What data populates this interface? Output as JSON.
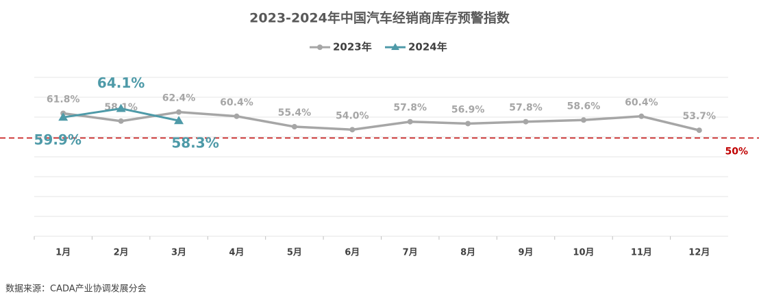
{
  "chart_data": {
    "type": "line",
    "title": "2023-2024年中国汽车经销商库存预警指数",
    "categories": [
      "1月",
      "2月",
      "3月",
      "4月",
      "5月",
      "6月",
      "7月",
      "8月",
      "9月",
      "10月",
      "11月",
      "12月"
    ],
    "series": [
      {
        "name": "2023年",
        "color": "#a6a6a6",
        "marker": "circle",
        "values": [
          61.8,
          58.1,
          62.4,
          60.4,
          55.4,
          54.0,
          57.8,
          56.9,
          57.8,
          58.6,
          60.4,
          53.7
        ],
        "value_labels": [
          "61.8%",
          "58.1%",
          "62.4%",
          "60.4%",
          "55.4%",
          "54.0%",
          "57.8%",
          "56.9%",
          "57.8%",
          "58.6%",
          "60.4%",
          "53.7%"
        ]
      },
      {
        "name": "2024年",
        "color": "#4e9aa8",
        "marker": "triangle",
        "values": [
          59.9,
          64.1,
          58.3,
          null,
          null,
          null,
          null,
          null,
          null,
          null,
          null,
          null
        ],
        "value_labels": [
          "59.9%",
          "64.1%",
          "58.3%",
          null,
          null,
          null,
          null,
          null,
          null,
          null,
          null,
          null
        ]
      }
    ],
    "ylim": [
      3,
      79
    ],
    "yticks": [
      3,
      12.5,
      22,
      31.5,
      41,
      50.5,
      60,
      69.5,
      79
    ],
    "ytick_labels": false,
    "grid": true,
    "legend": "top",
    "reference_line": {
      "value": 50,
      "label": "50%",
      "color": "#c00000"
    },
    "source": "数据来源：CADA产业协调发展分会"
  }
}
